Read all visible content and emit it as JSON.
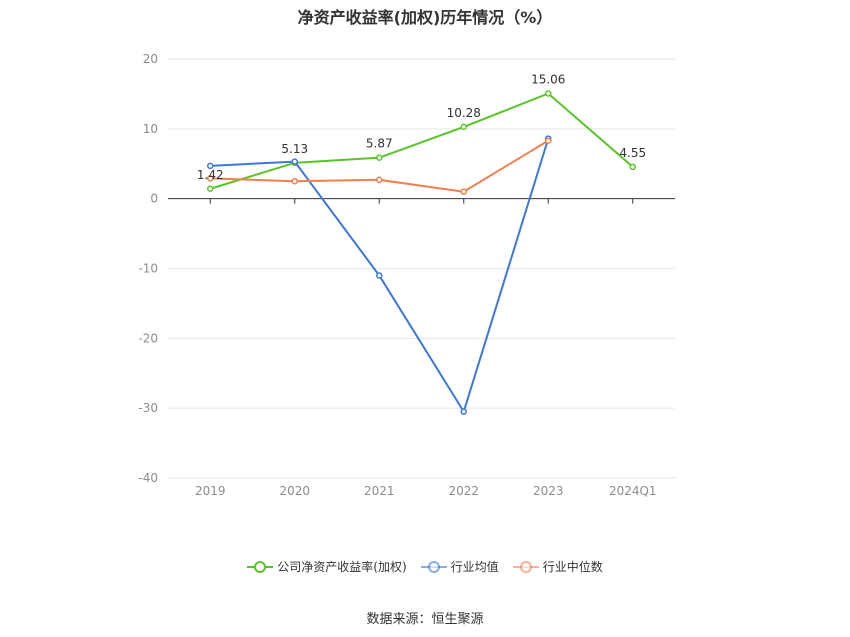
{
  "title": "净资产收益率(加权)历年情况（%）",
  "source": "数据来源：恒生聚源",
  "colors": {
    "axis": "#333333",
    "grid": "#e6e6e6",
    "tick_label": "#8c8c8c",
    "data_label": "#333333"
  },
  "chart_data": {
    "type": "line",
    "title": "净资产收益率(加权)历年情况（%）",
    "categories": [
      "2019",
      "2020",
      "2021",
      "2022",
      "2023",
      "2024Q1"
    ],
    "ylim": [
      -40,
      20
    ],
    "yticks": [
      -40,
      -30,
      -20,
      -10,
      0,
      10,
      20
    ],
    "grid": true,
    "legend_position": "bottom",
    "series": [
      {
        "name": "公司净资产收益率(加权)",
        "color": "#5ac42b",
        "values": [
          1.42,
          5.13,
          5.87,
          10.28,
          15.06,
          4.55
        ],
        "labels": [
          "1.42",
          "5.13",
          "5.87",
          "10.28",
          "15.06",
          "4.55"
        ]
      },
      {
        "name": "行业均值",
        "color": "#3c78d8",
        "values": [
          4.7,
          5.3,
          -11.0,
          -30.5,
          8.6,
          null
        ],
        "labels": null
      },
      {
        "name": "行业中位数",
        "color": "#f07f50",
        "values": [
          2.9,
          2.5,
          2.7,
          1.0,
          8.3,
          null
        ],
        "labels": null
      }
    ]
  }
}
